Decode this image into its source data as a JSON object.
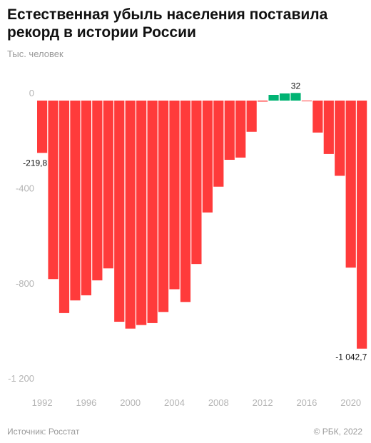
{
  "title": "Естественная убыль населения поставила рекорд в истории России",
  "unit_label": "Тыс. человек",
  "source": "Источник: Росстат",
  "copyright": "© РБК, 2022",
  "colors": {
    "negative": "#ff3b3b",
    "positive": "#00b373",
    "axis_text": "#b4b4b4",
    "label_text": "#111111"
  },
  "chart_data": {
    "type": "bar",
    "x": [
      1992,
      1993,
      1994,
      1995,
      1996,
      1997,
      1998,
      1999,
      2000,
      2001,
      2002,
      2003,
      2004,
      2005,
      2006,
      2007,
      2008,
      2009,
      2010,
      2011,
      2012,
      2013,
      2014,
      2015,
      2016,
      2017,
      2018,
      2019,
      2020,
      2021
    ],
    "values": [
      -219.8,
      -750.3,
      -893.2,
      -840.0,
      -818.5,
      -755.7,
      -705.4,
      -929.6,
      -958.5,
      -943.4,
      -935.3,
      -888.5,
      -793.0,
      -846.5,
      -687.1,
      -470.3,
      -362.0,
      -248.9,
      -239.6,
      -131.2,
      -4.3,
      24.0,
      30.0,
      32.0,
      -2.3,
      -134.4,
      -224.6,
      -316.2,
      -702.1,
      -1042.7
    ],
    "value_labels": {
      "0": "-219,8",
      "23": "32",
      "29": "-1 042,7"
    },
    "y_ticks": [
      0,
      -400,
      -800,
      -1200
    ],
    "y_tick_labels": [
      "0",
      "-400",
      "-800",
      "-1 200"
    ],
    "x_ticks": [
      1992,
      1996,
      2000,
      2004,
      2008,
      2012,
      2016,
      2020
    ],
    "ylim": [
      -1200,
      50
    ],
    "grid": false
  }
}
